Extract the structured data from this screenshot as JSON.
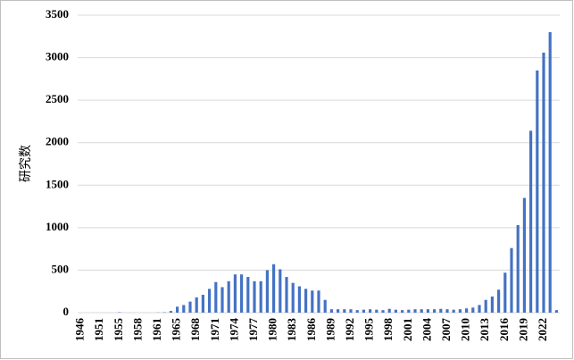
{
  "chart_data": {
    "type": "bar",
    "y_label": "研究数",
    "categories": [
      "1946",
      null,
      null,
      "1951",
      null,
      null,
      "1955",
      null,
      null,
      "1958",
      null,
      null,
      "1961",
      null,
      null,
      "1965",
      null,
      null,
      "1968",
      null,
      null,
      "1971",
      null,
      null,
      "1974",
      null,
      null,
      "1977",
      null,
      null,
      "1980",
      null,
      null,
      "1983",
      null,
      null,
      "1986",
      null,
      null,
      "1989",
      null,
      null,
      "1992",
      null,
      null,
      "1995",
      null,
      null,
      "1998",
      null,
      null,
      "2001",
      null,
      null,
      "2004",
      null,
      null,
      "2007",
      null,
      null,
      "2010",
      null,
      null,
      "2013",
      null,
      null,
      "2016",
      null,
      null,
      "2019",
      null,
      null,
      "2022",
      null,
      null
    ],
    "values": [
      0,
      0,
      0,
      0,
      0,
      0,
      5,
      0,
      0,
      0,
      0,
      0,
      2,
      5,
      20,
      70,
      90,
      130,
      180,
      210,
      280,
      360,
      300,
      370,
      450,
      450,
      420,
      370,
      370,
      500,
      570,
      510,
      420,
      350,
      310,
      280,
      260,
      260,
      150,
      40,
      40,
      40,
      40,
      30,
      35,
      40,
      35,
      30,
      45,
      35,
      30,
      35,
      40,
      40,
      40,
      40,
      45,
      40,
      35,
      40,
      50,
      60,
      90,
      150,
      190,
      270,
      470,
      760,
      1030,
      1350,
      2140,
      2850,
      3060,
      3300,
      30
    ],
    "color": "#4472c4",
    "ylim": [
      0,
      3500
    ],
    "yticks": [
      0,
      500,
      1000,
      1500,
      2000,
      2500,
      3000,
      3500
    ],
    "grid": true
  }
}
